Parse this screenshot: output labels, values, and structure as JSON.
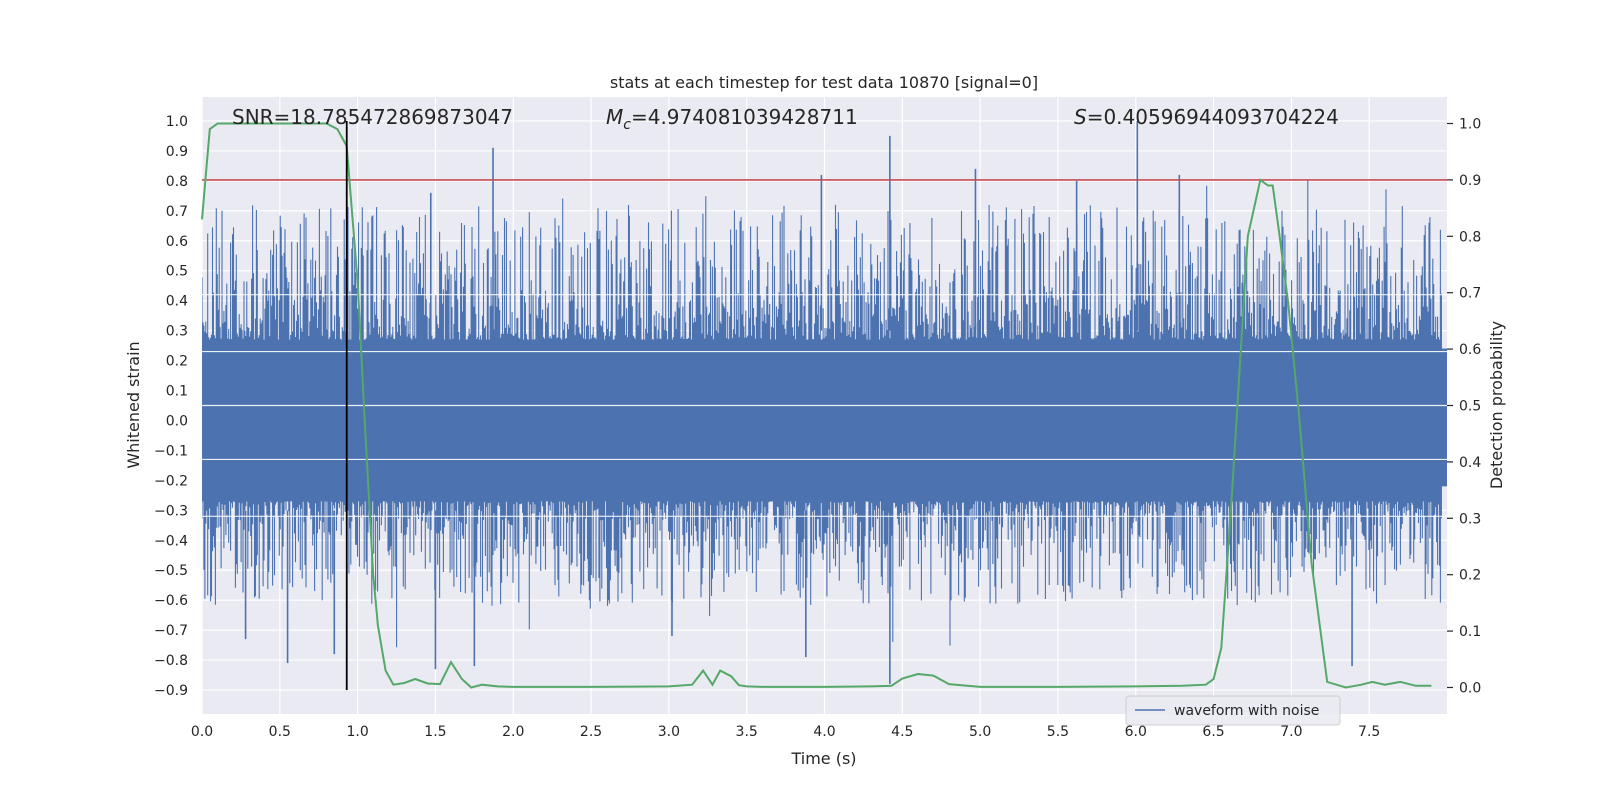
{
  "chart_data": {
    "type": "line",
    "title": "stats at each timestep for test data 10870 [signal=0]",
    "xlabel": "Time (s)",
    "ylabel": "Whitened strain",
    "ylabel_right": "Detection probability",
    "xlim": [
      0.0,
      8.0
    ],
    "ylim": [
      -0.98,
      1.08
    ],
    "ylim_right": [
      -0.047,
      1.047
    ],
    "x_ticks": [
      "0.0",
      "0.5",
      "1.0",
      "1.5",
      "2.0",
      "2.5",
      "3.0",
      "3.5",
      "4.0",
      "4.5",
      "5.0",
      "5.5",
      "6.0",
      "6.5",
      "7.0",
      "7.5"
    ],
    "x_tick_values": [
      0.0,
      0.5,
      1.0,
      1.5,
      2.0,
      2.5,
      3.0,
      3.5,
      4.0,
      4.5,
      5.0,
      5.5,
      6.0,
      6.5,
      7.0,
      7.5
    ],
    "y_ticks": [
      "1.0",
      "0.9",
      "0.8",
      "0.7",
      "0.6",
      "0.5",
      "0.4",
      "0.3",
      "0.2",
      "0.1",
      "0.0",
      "−0.1",
      "−0.2",
      "−0.3",
      "−0.4",
      "−0.5",
      "−0.6",
      "−0.7",
      "−0.8",
      "−0.9"
    ],
    "y_tick_values": [
      1.0,
      0.9,
      0.8,
      0.7,
      0.6,
      0.5,
      0.4,
      0.3,
      0.2,
      0.1,
      0.0,
      -0.1,
      -0.2,
      -0.3,
      -0.4,
      -0.5,
      -0.6,
      -0.7,
      -0.8,
      -0.9
    ],
    "y_ticks_right": [
      "1.0",
      "0.9",
      "0.8",
      "0.7",
      "0.6",
      "0.5",
      "0.4",
      "0.3",
      "0.2",
      "0.1",
      "0.0"
    ],
    "y_tick_values_right": [
      1.0,
      0.9,
      0.8,
      0.7,
      0.6,
      0.5,
      0.4,
      0.3,
      0.2,
      0.1,
      0.0
    ],
    "grid": true,
    "legend_position": "lower-right",
    "annotations": {
      "snr": "SNR=18.785472869873047",
      "mc_symbol": "M",
      "mc_subscript": "c",
      "mc_value": "=4.974081039428711",
      "s_symbol": "S",
      "s_value": "=0.40596944093704224"
    },
    "series": [
      {
        "name": "waveform with noise",
        "axis": "left",
        "color": "#4c72b0",
        "style": "dense noise",
        "band_min": -0.22,
        "band_max": 0.24,
        "typical_peak": 0.45,
        "spikes": [
          {
            "x": 0.28,
            "y": -0.73
          },
          {
            "x": 0.55,
            "y": -0.81
          },
          {
            "x": 0.85,
            "y": -0.78
          },
          {
            "x": 1.47,
            "y": 0.76
          },
          {
            "x": 1.5,
            "y": -0.83
          },
          {
            "x": 1.75,
            "y": -0.82
          },
          {
            "x": 1.87,
            "y": 0.91
          },
          {
            "x": 3.02,
            "y": -0.72
          },
          {
            "x": 3.88,
            "y": -0.79
          },
          {
            "x": 3.98,
            "y": 0.82
          },
          {
            "x": 4.42,
            "y": 0.95
          },
          {
            "x": 4.42,
            "y": -0.88
          },
          {
            "x": 4.97,
            "y": 0.84
          },
          {
            "x": 5.62,
            "y": 0.8
          },
          {
            "x": 6.01,
            "y": 1.0
          },
          {
            "x": 6.28,
            "y": 0.82
          },
          {
            "x": 7.39,
            "y": -0.82
          }
        ]
      },
      {
        "name": "",
        "axis": "right",
        "color": "#55a868",
        "x": [
          0.0,
          0.05,
          0.1,
          0.2,
          0.3,
          0.5,
          0.6,
          0.7,
          0.8,
          0.87,
          0.93,
          1.0,
          1.05,
          1.1,
          1.13,
          1.18,
          1.23,
          1.3,
          1.37,
          1.45,
          1.53,
          1.6,
          1.67,
          1.73,
          1.8,
          1.9,
          2.0,
          2.5,
          3.0,
          3.15,
          3.22,
          3.28,
          3.33,
          3.4,
          3.45,
          3.5,
          3.6,
          4.0,
          4.3,
          4.43,
          4.5,
          4.6,
          4.7,
          4.8,
          5.0,
          5.5,
          6.0,
          6.3,
          6.45,
          6.5,
          6.55,
          6.62,
          6.72,
          6.8,
          6.85,
          6.88,
          6.92,
          6.98,
          7.05,
          7.13,
          7.23,
          7.35,
          7.45,
          7.52,
          7.6,
          7.7,
          7.8,
          7.9
        ],
        "values": [
          0.83,
          0.99,
          1.0,
          1.0,
          1.0,
          1.0,
          1.0,
          1.0,
          1.0,
          0.99,
          0.96,
          0.72,
          0.45,
          0.2,
          0.11,
          0.03,
          0.005,
          0.008,
          0.015,
          0.007,
          0.006,
          0.045,
          0.015,
          0.0,
          0.005,
          0.002,
          0.001,
          0.001,
          0.002,
          0.005,
          0.03,
          0.005,
          0.03,
          0.02,
          0.004,
          0.002,
          0.001,
          0.001,
          0.002,
          0.003,
          0.016,
          0.024,
          0.021,
          0.006,
          0.001,
          0.001,
          0.002,
          0.003,
          0.005,
          0.015,
          0.07,
          0.35,
          0.8,
          0.9,
          0.89,
          0.89,
          0.81,
          0.68,
          0.48,
          0.22,
          0.01,
          0.0,
          0.005,
          0.01,
          0.005,
          0.01,
          0.003,
          0.003
        ]
      }
    ],
    "threshold_line": {
      "axis": "right",
      "value": 0.9,
      "color": "#c44e52"
    },
    "event_marker": {
      "x": 0.93,
      "y_range": [
        -0.9,
        1.0
      ],
      "color": "#000000"
    }
  }
}
